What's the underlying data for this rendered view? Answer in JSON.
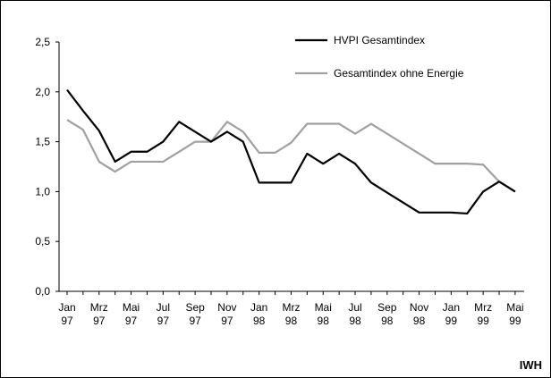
{
  "chart_data": {
    "type": "line",
    "categories": [
      "Jan 97",
      null,
      "Mrz 97",
      null,
      "Mai 97",
      null,
      "Jul 97",
      null,
      "Sep 97",
      null,
      "Nov 97",
      null,
      "Jan 98",
      null,
      "Mrz 98",
      null,
      "Mai 98",
      null,
      "Jul 98",
      null,
      "Sep 98",
      null,
      "Nov 98",
      null,
      "Jan 99",
      null,
      "Mrz 99",
      null,
      "Mai 99"
    ],
    "series": [
      {
        "name": "HVPI Gesamtindex",
        "color": "#000000",
        "values": [
          2.02,
          1.81,
          1.61,
          1.3,
          1.4,
          1.4,
          1.5,
          1.7,
          1.6,
          1.5,
          1.6,
          1.5,
          1.09,
          1.09,
          1.09,
          1.38,
          1.28,
          1.38,
          1.28,
          1.09,
          0.99,
          0.89,
          0.79,
          0.79,
          0.79,
          0.78,
          1.0,
          1.1,
          1.0
        ]
      },
      {
        "name": "Gesamtindex ohne Energie",
        "color": "#a0a0a0",
        "values": [
          1.72,
          1.62,
          1.3,
          1.2,
          1.3,
          1.3,
          1.3,
          1.4,
          1.5,
          1.5,
          1.7,
          1.6,
          1.39,
          1.39,
          1.49,
          1.68,
          1.68,
          1.68,
          1.58,
          1.68,
          1.58,
          1.48,
          1.38,
          1.28,
          1.28,
          1.28,
          1.27,
          1.1,
          1.0
        ]
      }
    ],
    "ylim": [
      0,
      2.5
    ],
    "yticks": [
      {
        "value": 0,
        "label": "0,0"
      },
      {
        "value": 0.5,
        "label": "0,5"
      },
      {
        "value": 1,
        "label": "1,0"
      },
      {
        "value": 1.5,
        "label": "1,5"
      },
      {
        "value": 2,
        "label": "2,0"
      },
      {
        "value": 2.5,
        "label": "2,5"
      }
    ],
    "legend_position": "upper right",
    "source": "IWH"
  }
}
